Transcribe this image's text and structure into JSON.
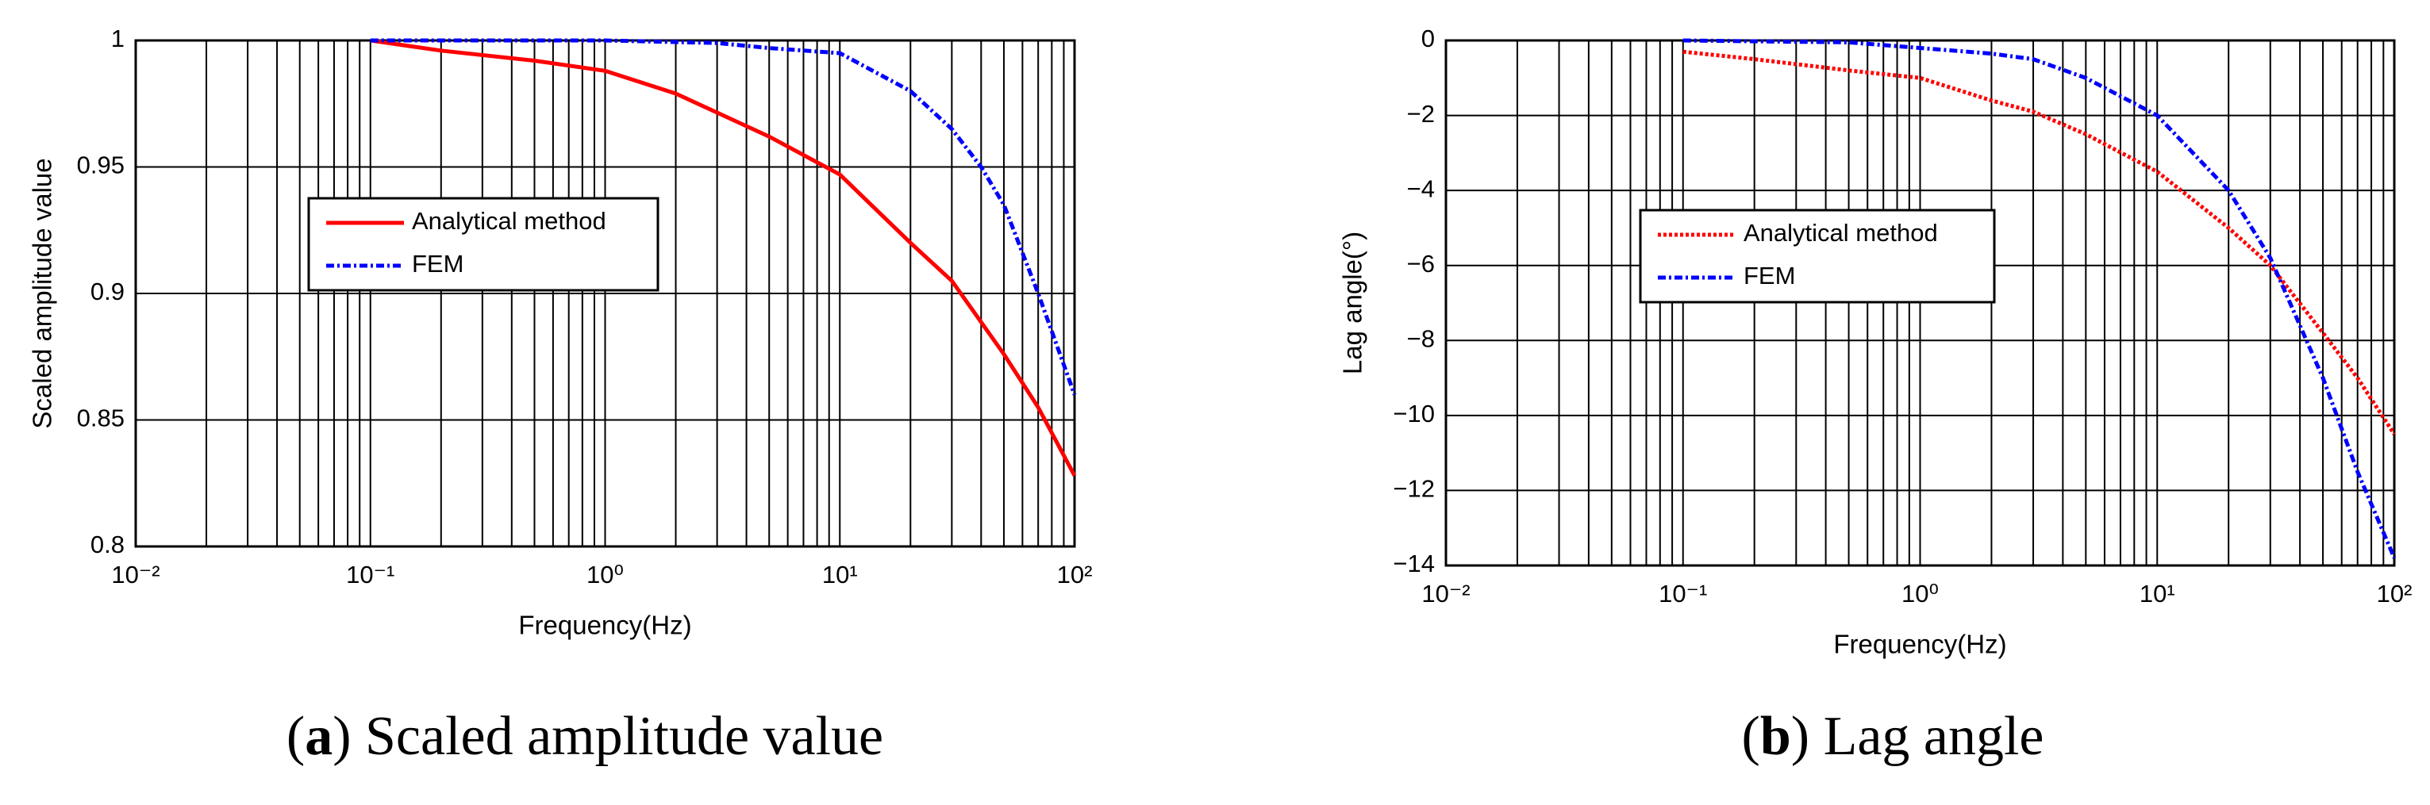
{
  "chart_data": [
    {
      "type": "line",
      "caption": {
        "label": "a",
        "text": "Scaled amplitude value"
      },
      "xlabel": "Frequency(Hz)",
      "ylabel": "Scaled amplitude value",
      "xscale": "log",
      "xlim": [
        0.01,
        100
      ],
      "xticks": [
        {
          "value": 0.01,
          "label": "10⁻²"
        },
        {
          "value": 0.1,
          "label": "10⁻¹"
        },
        {
          "value": 1,
          "label": "10⁰"
        },
        {
          "value": 10,
          "label": "10¹"
        },
        {
          "value": 100,
          "label": "10²"
        }
      ],
      "ylim": [
        0.8,
        1
      ],
      "yticks": [
        0.8,
        0.85,
        0.9,
        0.95,
        1
      ],
      "grid": true,
      "minor_grid": true,
      "legend_position": "center left",
      "series": [
        {
          "name": "Analytical method",
          "color": "#ff0000",
          "line_style": "solid",
          "x": [
            0.1,
            0.2,
            0.5,
            1,
            2,
            5,
            10,
            20,
            30,
            50,
            70,
            100
          ],
          "values": [
            1,
            0.996,
            0.992,
            0.988,
            0.979,
            0.962,
            0.947,
            0.92,
            0.905,
            0.876,
            0.855,
            0.828
          ]
        },
        {
          "name": "FEM",
          "color": "#0000ff",
          "line_style": "dashdot",
          "x": [
            0.1,
            1,
            3,
            5,
            10,
            20,
            30,
            40,
            50,
            70,
            100
          ],
          "values": [
            1,
            1,
            0.999,
            0.997,
            0.995,
            0.98,
            0.965,
            0.95,
            0.935,
            0.9,
            0.86
          ]
        }
      ]
    },
    {
      "type": "line",
      "caption": {
        "label": "b",
        "text": "Lag angle"
      },
      "xlabel": "Frequency(Hz)",
      "ylabel": "Lag angle(°)",
      "xscale": "log",
      "xlim": [
        0.01,
        100
      ],
      "xticks": [
        {
          "value": 0.01,
          "label": "10⁻²"
        },
        {
          "value": 0.1,
          "label": "10⁻¹"
        },
        {
          "value": 1,
          "label": "10⁰"
        },
        {
          "value": 10,
          "label": "10¹"
        },
        {
          "value": 100,
          "label": "10²"
        }
      ],
      "ylim": [
        -14,
        0
      ],
      "yticks": [
        {
          "value": -14,
          "label": "−14"
        },
        {
          "value": -12,
          "label": "−12"
        },
        {
          "value": -10,
          "label": "−10"
        },
        {
          "value": -8,
          "label": "−8"
        },
        {
          "value": -6,
          "label": "−6"
        },
        {
          "value": -4,
          "label": "−4"
        },
        {
          "value": -2,
          "label": "−2"
        },
        0
      ],
      "grid": true,
      "minor_grid": true,
      "legend_position": "upper left",
      "series": [
        {
          "name": "Analytical method",
          "color": "#ff0000",
          "line_style": "dotted",
          "x": [
            0.1,
            0.2,
            0.5,
            1,
            2,
            3,
            5,
            10,
            20,
            30,
            50,
            70,
            100
          ],
          "values": [
            -0.3,
            -0.5,
            -0.8,
            -1.0,
            -1.6,
            -1.9,
            -2.5,
            -3.5,
            -5.0,
            -6.0,
            -7.8,
            -9.0,
            -10.5
          ]
        },
        {
          "name": "FEM",
          "color": "#0000ff",
          "line_style": "dashdot",
          "x": [
            0.1,
            0.5,
            1,
            2,
            3,
            5,
            10,
            20,
            30,
            50,
            70,
            100
          ],
          "values": [
            0,
            -0.05,
            -0.2,
            -0.35,
            -0.5,
            -1.0,
            -2.0,
            -4.0,
            -5.8,
            -9.0,
            -11.5,
            -13.8
          ]
        }
      ]
    }
  ]
}
